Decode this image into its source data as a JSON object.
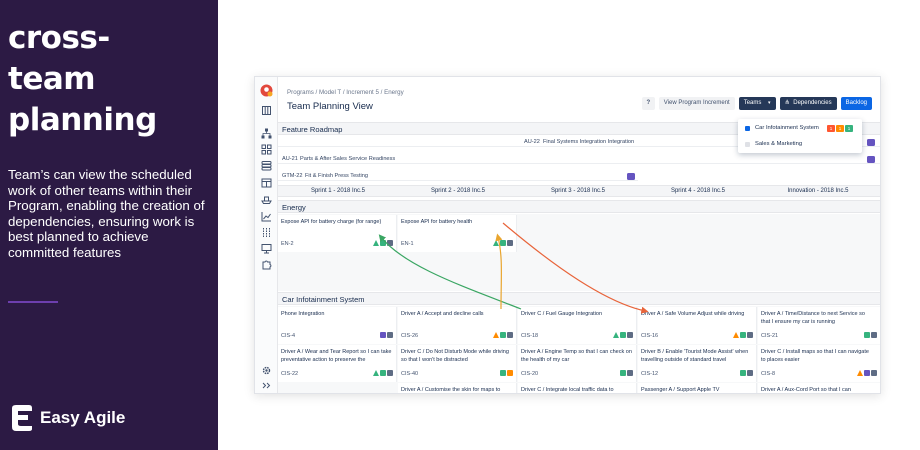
{
  "headline": [
    "cross-",
    "team",
    "planning"
  ],
  "blurb": "Team’s can view the scheduled work of other teams within their Program, enabling the creation of dependencies, ensuring work is best planned to achieve committed features",
  "brand": {
    "name": "Easy Agile"
  },
  "app": {
    "breadcrumb": "Programs  / Model T  / Increment 5  / Energy",
    "title": "Team Planning View",
    "help_label": "?",
    "view_pi_label": "View Program Increment",
    "teams_label": "Teams",
    "dependencies_label": "Dependencies",
    "backlog_label": "Backlog",
    "teams_menu": [
      {
        "label": "Car Infotainment System",
        "checked": true,
        "badges": [
          "1",
          "1",
          "1"
        ]
      },
      {
        "label": "Sales & Marketing",
        "checked": false,
        "badges": []
      }
    ],
    "feature_roadmap": {
      "heading": "Feature Roadmap",
      "bars": [
        {
          "key": "AU-22",
          "label": "Final Systems Integration Integration"
        },
        {
          "key": "AU-21",
          "label": "Parts & After Sales Service Readiness"
        },
        {
          "key": "GTM-22",
          "label": "Fit & Finish Press Testing"
        }
      ]
    },
    "sprints": [
      "Sprint 1 - 2018 Inc.5",
      "Sprint 2 - 2018 Inc.5",
      "Sprint 3 - 2018 Inc.5",
      "Sprint 4 - 2018 Inc.5",
      "Innovation - 2018 Inc.5"
    ],
    "energy": {
      "heading": "Energy",
      "cards": [
        {
          "title": "Expose API for battery charge (for range)",
          "key": "EN-2"
        },
        {
          "title": "Expose API for battery health",
          "key": "EN-1"
        }
      ]
    },
    "infotainment": {
      "heading": "Car Infotainment System",
      "row1": [
        {
          "title": "Phone Integration",
          "key": "CIS-4"
        },
        {
          "title": "Driver A / Accept and decline calls",
          "key": "CIS-26"
        },
        {
          "title": "Driver C / Fuel Gauge Integration",
          "key": "CIS-18"
        },
        {
          "title": "Driver A / Safe Volume Adjust while driving",
          "key": "CIS-16"
        },
        {
          "title": "Driver A / Time/Distance to next Service so that I ensure my car is running",
          "key": "CIS-21"
        }
      ],
      "row2": [
        {
          "title": "Driver A / Wear and Tear Report so I can take preventative action to preserve the",
          "key": "CIS-22"
        },
        {
          "title": "Driver C / Do Not Disturb Mode while driving so that I won't be distracted",
          "key": "CIS-40"
        },
        {
          "title": "Driver A / Engine Temp so that I can check on the health of my car",
          "key": "CIS-20"
        },
        {
          "title": "Driver B / Enable 'Tourist Mode Assist' when travelling outside of standard travel",
          "key": "CIS-12"
        },
        {
          "title": "Driver C / Install maps so that I can navigate to places easier",
          "key": "CIS-8"
        }
      ],
      "row3": [
        {
          "title": "Driver A / Customise the skin for maps to"
        },
        {
          "title": "Driver C / Integrate local traffic data to"
        },
        {
          "title": "Passenger A / Support Apple TV"
        },
        {
          "title": "Driver A / Aux-Cord Port so that I can"
        }
      ]
    }
  }
}
